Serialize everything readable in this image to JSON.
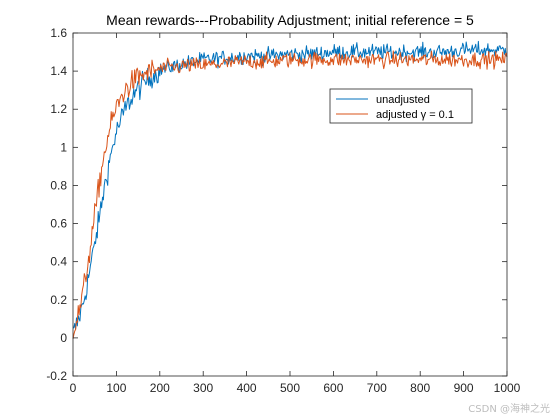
{
  "chart_data": {
    "type": "line",
    "title": "Mean rewards---Probability Adjustment; initial reference = 5",
    "xlabel": "",
    "ylabel": "",
    "xlim": [
      0,
      1000
    ],
    "ylim": [
      -0.2,
      1.6
    ],
    "xticks": [
      0,
      100,
      200,
      300,
      400,
      500,
      600,
      700,
      800,
      900,
      1000
    ],
    "yticks": [
      -0.2,
      0,
      0.2,
      0.4,
      0.6,
      0.8,
      1,
      1.2,
      1.4,
      1.6
    ],
    "grid": false,
    "legend_position": "upper-right",
    "legend": [
      "unadjusted",
      "adjusted γ = 0.1"
    ],
    "series": [
      {
        "name": "unadjusted",
        "color": "#0072BD",
        "x": [
          0,
          10,
          20,
          30,
          40,
          50,
          60,
          70,
          80,
          90,
          100,
          120,
          140,
          160,
          180,
          200,
          220,
          240,
          260,
          280,
          300,
          350,
          400,
          450,
          500,
          550,
          600,
          650,
          700,
          750,
          800,
          850,
          900,
          950,
          1000
        ],
        "y": [
          0.02,
          0.08,
          0.15,
          0.25,
          0.37,
          0.49,
          0.62,
          0.76,
          0.88,
          0.99,
          1.08,
          1.2,
          1.28,
          1.33,
          1.37,
          1.4,
          1.42,
          1.43,
          1.44,
          1.45,
          1.46,
          1.47,
          1.48,
          1.48,
          1.49,
          1.49,
          1.5,
          1.5,
          1.5,
          1.5,
          1.5,
          1.5,
          1.51,
          1.51,
          1.51
        ]
      },
      {
        "name": "adjusted γ = 0.1",
        "color": "#D95319",
        "x": [
          0,
          10,
          20,
          30,
          40,
          50,
          60,
          70,
          80,
          90,
          100,
          120,
          140,
          160,
          180,
          200,
          220,
          240,
          260,
          280,
          300,
          350,
          400,
          450,
          500,
          550,
          600,
          650,
          700,
          750,
          800,
          850,
          900,
          950,
          1000
        ],
        "y": [
          0.03,
          0.1,
          0.2,
          0.33,
          0.48,
          0.64,
          0.8,
          0.94,
          1.05,
          1.14,
          1.21,
          1.3,
          1.35,
          1.38,
          1.4,
          1.41,
          1.42,
          1.42,
          1.43,
          1.43,
          1.43,
          1.44,
          1.45,
          1.45,
          1.46,
          1.46,
          1.46,
          1.46,
          1.46,
          1.46,
          1.46,
          1.46,
          1.46,
          1.46,
          1.46
        ]
      }
    ]
  },
  "watermark": "CSDN @海神之光"
}
